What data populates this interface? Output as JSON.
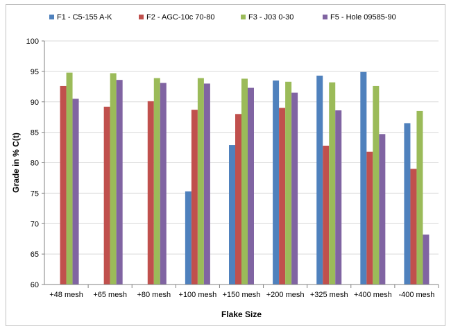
{
  "chart_data": {
    "type": "bar",
    "title": "",
    "xlabel": "Flake Size",
    "ylabel": "Grade in % C(t)",
    "ylim": [
      60,
      100
    ],
    "yticks": [
      60,
      65,
      70,
      75,
      80,
      85,
      90,
      95,
      100
    ],
    "grid": true,
    "legend_position": "top",
    "categories": [
      "+48 mesh",
      "+65 mesh",
      "+80 mesh",
      "+100 mesh",
      "+150 mesh",
      "+200 mesh",
      "+325 mesh",
      "+400 mesh",
      "-400 mesh"
    ],
    "series": [
      {
        "name": "F1 - C5-155 A-K",
        "color": "#4f81bd",
        "values": [
          null,
          null,
          null,
          75.3,
          82.9,
          93.5,
          94.3,
          94.9,
          86.5
        ]
      },
      {
        "name": "F2 - AGC-10c 70-80",
        "color": "#c0504d",
        "values": [
          92.6,
          89.2,
          90.1,
          88.7,
          88.0,
          89.0,
          82.8,
          81.8,
          79.0
        ]
      },
      {
        "name": "F3 - J03 0-30",
        "color": "#9bbb59",
        "values": [
          94.8,
          94.7,
          93.9,
          93.9,
          93.8,
          93.3,
          93.2,
          92.6,
          88.5
        ]
      },
      {
        "name": "F5 - Hole 09585-90",
        "color": "#8064a2",
        "values": [
          90.5,
          93.6,
          93.1,
          93.0,
          92.3,
          91.5,
          88.6,
          84.7,
          68.2
        ]
      }
    ]
  }
}
